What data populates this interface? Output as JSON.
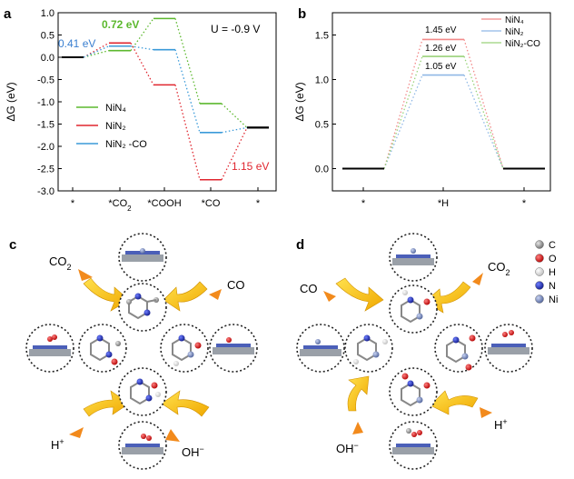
{
  "chart_data": [
    {
      "panel": "a",
      "type": "line",
      "annotation": "U = -0.9 V",
      "ylabel": "ΔG (eV)",
      "xlabel": "",
      "ylim": [
        -3.0,
        1.0
      ],
      "yticks": [
        "1.0",
        "0.5",
        "0.0",
        "-0.5",
        "-1.0",
        "-1.5",
        "-2.0",
        "-2.5",
        "-3.0"
      ],
      "categories": [
        "*",
        "*CO2",
        "*COOH",
        "*CO",
        "*"
      ],
      "series": [
        {
          "name": "NiN₄",
          "color": "#5cb82e",
          "values": [
            0.0,
            0.15,
            0.87,
            -1.04,
            -1.58
          ]
        },
        {
          "name": "NiN₂",
          "color": "#e0262f",
          "values": [
            0.0,
            0.32,
            -0.62,
            -2.75,
            -1.58
          ]
        },
        {
          "name": "NiN₂ -CO",
          "color": "#3a9ad9",
          "values": [
            0.0,
            0.25,
            0.17,
            -1.69,
            -1.58
          ]
        }
      ],
      "labels": [
        {
          "text": "0.72 eV",
          "color": "#5cb82e"
        },
        {
          "text": "0.41 eV",
          "color": "#3a7fd0"
        },
        {
          "text": "1.15 eV",
          "color": "#e0262f"
        }
      ],
      "grid": false,
      "legend": "center-left"
    },
    {
      "panel": "b",
      "type": "line",
      "ylabel": "ΔG (eV)",
      "xlabel": "",
      "ylim": [
        -0.25,
        1.75
      ],
      "yticks": [
        "1.5",
        "1.0",
        "0.5",
        "0.0"
      ],
      "categories": [
        "*",
        "*H",
        "*"
      ],
      "series": [
        {
          "name": "NiN₄",
          "color": "#f28a8a",
          "values": [
            0.0,
            1.45,
            0.0
          ]
        },
        {
          "name": "NiN₂",
          "color": "#8fb8e6",
          "values": [
            0.0,
            1.05,
            0.0
          ]
        },
        {
          "name": "NiN₂-CO",
          "color": "#9ad27a",
          "values": [
            0.0,
            1.26,
            0.0
          ]
        }
      ],
      "labels": [
        {
          "text": "1.45 eV"
        },
        {
          "text": "1.26 eV"
        },
        {
          "text": "1.05 eV"
        }
      ],
      "grid": false,
      "legend": "top-right"
    }
  ],
  "panel_c": {
    "label": "c",
    "species": {
      "co2": "CO2",
      "co": "CO",
      "h": "H+",
      "oh": "OH-"
    }
  },
  "panel_d": {
    "label": "d",
    "species": {
      "co2": "CO2",
      "co": "CO",
      "h": "H+",
      "oh": "OH-"
    }
  },
  "atom_legend": [
    {
      "symbol": "C",
      "color": "#8c8c8c"
    },
    {
      "symbol": "O",
      "color": "#d41f1f"
    },
    {
      "symbol": "H",
      "color": "#f2f2f2"
    },
    {
      "symbol": "N",
      "color": "#1f2fb5"
    },
    {
      "symbol": "Ni",
      "color": "#7a8fc4"
    }
  ],
  "colors": {
    "arrow_yellow": "#f7c200",
    "pointer_orange": "#f28a1c",
    "bond_gray": "#888888"
  }
}
